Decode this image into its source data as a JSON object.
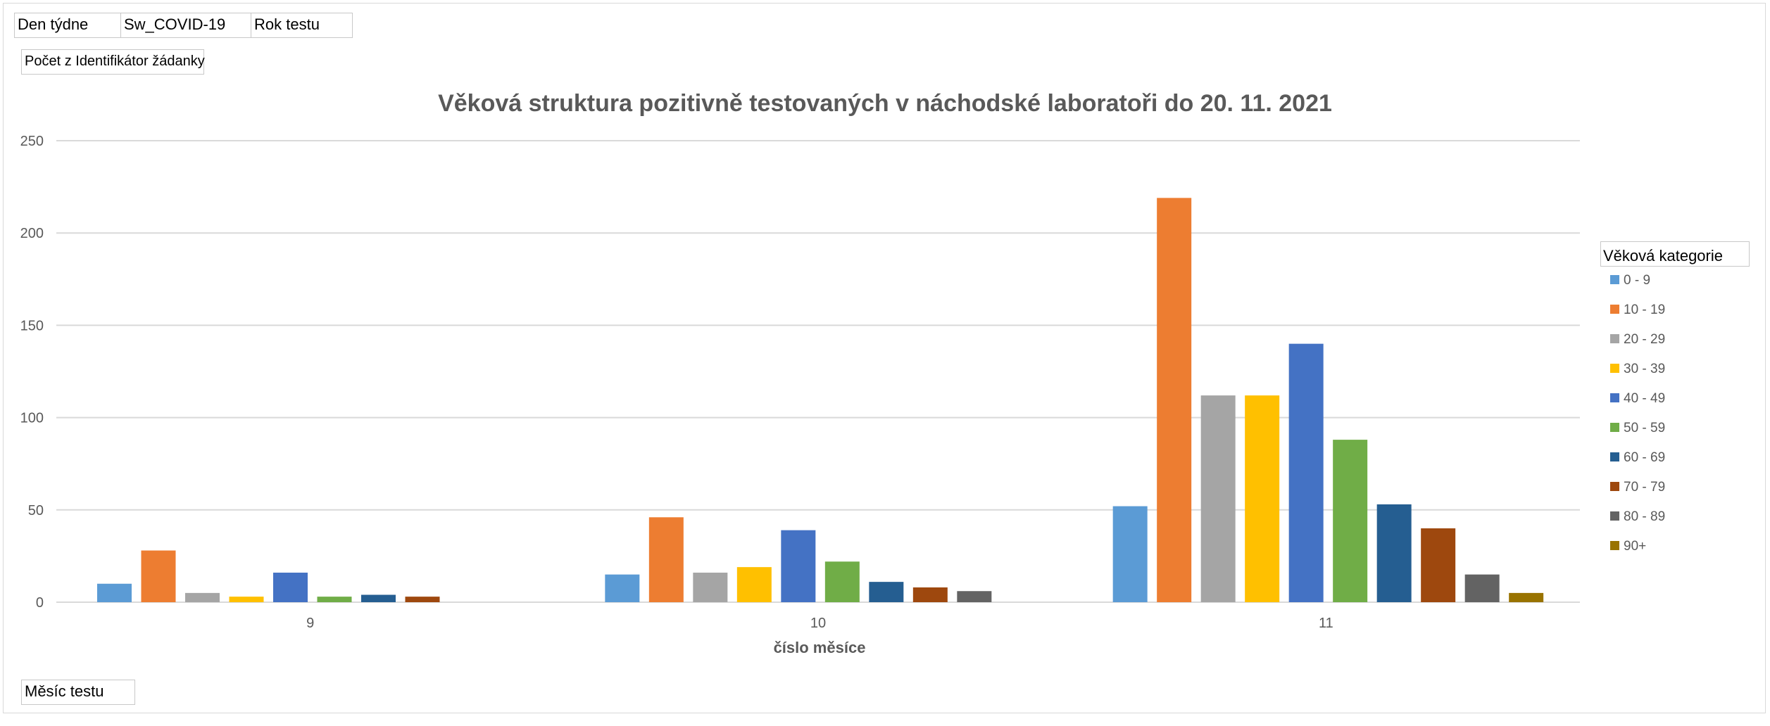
{
  "filters": [
    {
      "label": "Den týdne"
    },
    {
      "label": "Sw_COVID-19"
    },
    {
      "label": "Rok testu"
    }
  ],
  "value_field": "Počet z Identifikátor žádanky",
  "axis_field": "Měsíc testu",
  "colors": {
    "gridline": "#d9d9d9",
    "title": "#595959",
    "tick": "#595959"
  },
  "chart_data": {
    "type": "bar",
    "title": "Věková struktura pozitivně testovaných v náchodské laboratoři do 20. 11. 2021",
    "xlabel": "číslo  měsíce",
    "ylabel": "",
    "ylim": [
      0,
      250
    ],
    "yticks": [
      0,
      50,
      100,
      150,
      200,
      250
    ],
    "grid": true,
    "legend_title": "Věková kategorie",
    "legend_position": "right",
    "categories": [
      "9",
      "10",
      "11"
    ],
    "series": [
      {
        "name": "0 - 9",
        "color": "#5B9BD5",
        "values": [
          10,
          15,
          52
        ]
      },
      {
        "name": "10 - 19",
        "color": "#ED7D31",
        "values": [
          28,
          46,
          219
        ]
      },
      {
        "name": "20 - 29",
        "color": "#A5A5A5",
        "values": [
          5,
          16,
          112
        ]
      },
      {
        "name": "30 - 39",
        "color": "#FFC000",
        "values": [
          3,
          19,
          112
        ]
      },
      {
        "name": "40 - 49",
        "color": "#4472C4",
        "values": [
          16,
          39,
          140
        ]
      },
      {
        "name": "50 - 59",
        "color": "#70AD47",
        "values": [
          3,
          22,
          88
        ]
      },
      {
        "name": "60 - 69",
        "color": "#255E91",
        "values": [
          4,
          11,
          53
        ]
      },
      {
        "name": "70 - 79",
        "color": "#9E480E",
        "values": [
          3,
          8,
          40
        ]
      },
      {
        "name": "80 - 89",
        "color": "#636363",
        "values": [
          0,
          6,
          15
        ]
      },
      {
        "name": "90+",
        "color": "#997300",
        "values": [
          0,
          0,
          5
        ]
      }
    ]
  }
}
